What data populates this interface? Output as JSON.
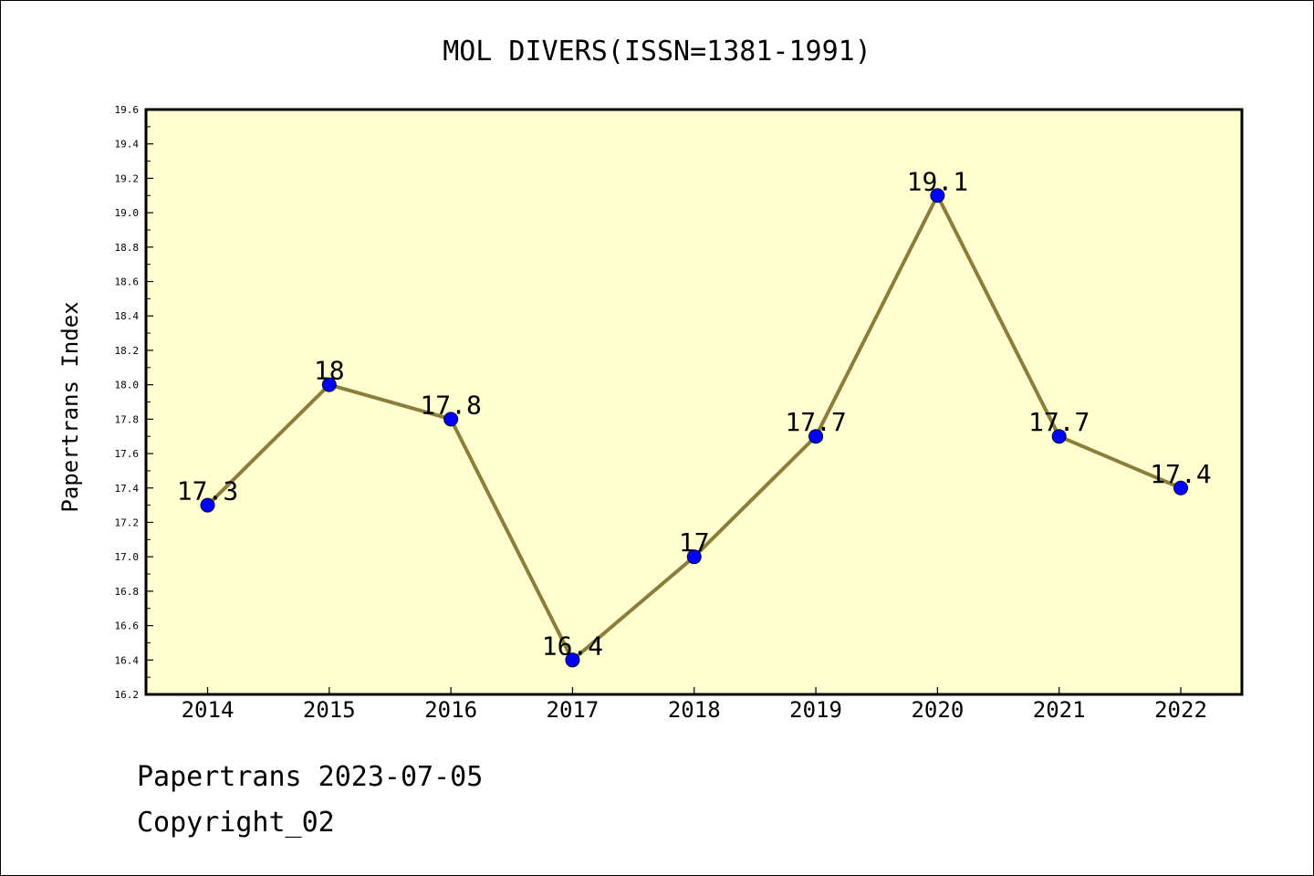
{
  "chart_data": {
    "type": "line",
    "title": "MOL DIVERS(ISSN=1381-1991)",
    "xlabel": "",
    "ylabel": "Papertrans Index",
    "categories": [
      "2014",
      "2015",
      "2016",
      "2017",
      "2018",
      "2019",
      "2020",
      "2021",
      "2022"
    ],
    "values": [
      17.3,
      18,
      17.8,
      16.4,
      17,
      17.7,
      19.1,
      17.7,
      17.4
    ],
    "data_labels": [
      "17.3",
      "18",
      "17.8",
      "16.4",
      "17",
      "17.7",
      "19.1",
      "17.7",
      "17.4"
    ],
    "ylim": [
      16.2,
      19.6
    ],
    "yticks": [
      "16.2",
      "16.4",
      "16.6",
      "16.8",
      "17.0",
      "17.2",
      "17.4",
      "17.6",
      "17.8",
      "18.0",
      "18.2",
      "18.4",
      "18.6",
      "18.8",
      "19.0",
      "19.2",
      "19.4",
      "19.6"
    ],
    "grid": false,
    "colors": {
      "plot_background": "#ffffd0",
      "line": "#8b7d3a",
      "marker": "#0000ff"
    }
  },
  "footer": {
    "line1": "Papertrans 2023-07-05",
    "line2": "Copyright_02"
  }
}
